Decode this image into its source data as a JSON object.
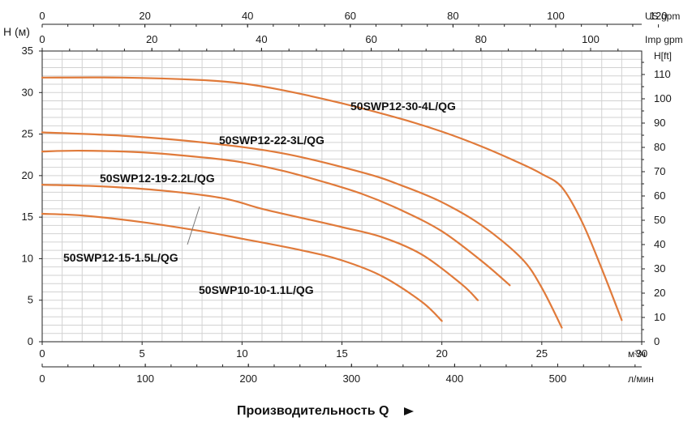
{
  "chart_data": {
    "type": "line",
    "xlabel": "Производительность Q",
    "ylabel": "H (м)",
    "ylabel_right": "H[ft]",
    "xunit": "м³/ч",
    "xunit_lmin": "л/мин",
    "xunit_usgpm": "US gpm",
    "xunit_impgpm": "Imp gpm",
    "xlim": [
      0,
      30
    ],
    "ylim": [
      0,
      35
    ],
    "x_ticks": [
      0,
      5,
      10,
      15,
      20,
      25,
      30
    ],
    "y_ticks": [
      0,
      5,
      10,
      15,
      20,
      25,
      30,
      35
    ],
    "lmin_ticks": [
      0,
      100,
      200,
      300,
      400,
      500
    ],
    "usgpm_ticks": [
      0,
      20,
      40,
      60,
      80,
      100,
      120
    ],
    "impgpm_ticks": [
      0,
      20,
      40,
      60,
      80,
      100
    ],
    "ft_ticks": [
      0,
      10,
      20,
      30,
      40,
      50,
      60,
      70,
      80,
      90,
      100,
      110
    ],
    "grid": true,
    "series": [
      {
        "name": "50SWP12-30-4L/QG",
        "color": "#e07a3a",
        "x": [
          0,
          4,
          8,
          10,
          12,
          15,
          18,
          20,
          22,
          24,
          25,
          26,
          27,
          28,
          29
        ],
        "y": [
          31.8,
          31.8,
          31.5,
          31.1,
          30.3,
          28.7,
          26.8,
          25.3,
          23.5,
          21.4,
          20.2,
          18.6,
          14.5,
          8.8,
          2.6
        ]
      },
      {
        "name": "50SWP12-22-3L/QG",
        "color": "#e07a3a",
        "x": [
          0,
          4,
          8,
          12,
          16,
          18,
          20,
          22,
          24,
          25,
          26
        ],
        "y": [
          25.2,
          24.8,
          24,
          22.7,
          20.4,
          18.8,
          16.8,
          14,
          10,
          6.5,
          1.7
        ]
      },
      {
        "name": "50SWP12-19-2.2L/QG",
        "color": "#e07a3a",
        "x": [
          0,
          2,
          5,
          8,
          10,
          12,
          14,
          16,
          18,
          20,
          22,
          23.4
        ],
        "y": [
          22.9,
          23,
          22.8,
          22.2,
          21.6,
          20.6,
          19.3,
          17.8,
          15.8,
          13.3,
          9.7,
          6.8
        ]
      },
      {
        "name": "50SWP12-15-1.5L/QG",
        "color": "#e07a3a",
        "x": [
          0,
          3,
          6,
          9,
          11,
          13,
          15,
          17,
          19,
          21,
          21.8
        ],
        "y": [
          18.9,
          18.7,
          18.2,
          17.3,
          16,
          14.9,
          13.8,
          12.6,
          10.5,
          6.9,
          5
        ]
      },
      {
        "name": "50SWP10-10-1.1L/QG",
        "color": "#e07a3a",
        "x": [
          0,
          2,
          5,
          8,
          10,
          13,
          15,
          17,
          19,
          20
        ],
        "y": [
          15.4,
          15.2,
          14.4,
          13.3,
          12.4,
          11,
          9.8,
          7.9,
          4.8,
          2.5
        ]
      }
    ]
  }
}
